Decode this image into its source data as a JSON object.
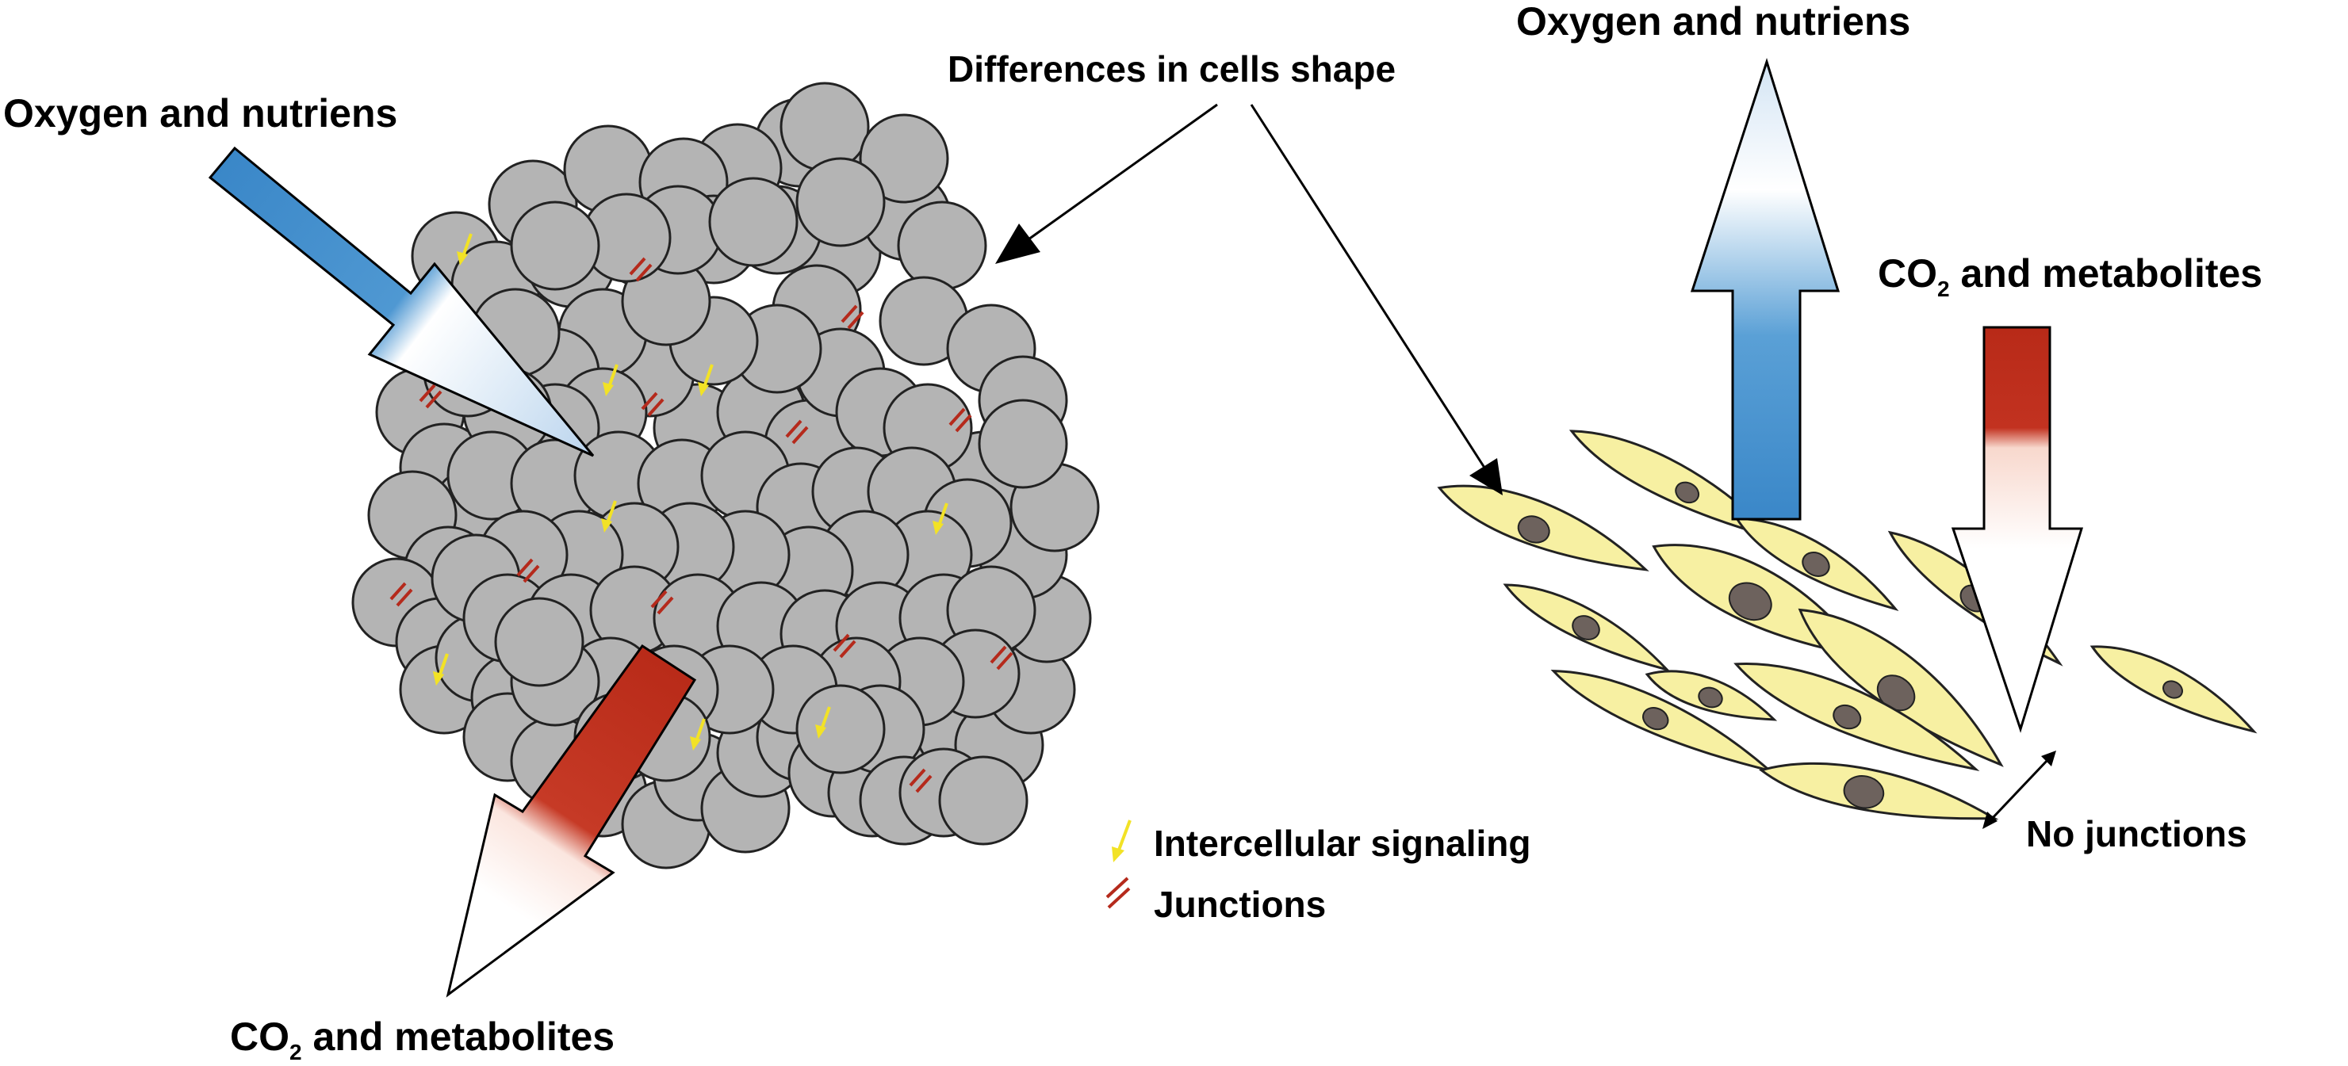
{
  "left_panel": {
    "oxygen_label": "Oxygen and nutriens",
    "co2_label": {
      "prefix": "CO",
      "subscript": "2",
      "suffix": " and metabolites"
    }
  },
  "center": {
    "shape_label": "Differences in cells shape"
  },
  "right_panel": {
    "oxygen_label": "Oxygen and nutriens",
    "co2_label": {
      "prefix": "CO",
      "subscript": "2",
      "suffix": " and metabolites"
    },
    "no_junctions_label": "No junctions"
  },
  "legend": {
    "items": [
      {
        "label": "Intercellular signaling",
        "icon": "yellow-arrow-icon"
      },
      {
        "label": "Junctions",
        "icon": "red-double-line-icon"
      }
    ]
  },
  "colors": {
    "cell_fill": "#b4b4b4",
    "flat_cell_fill": "#f7f0a2",
    "nucleus_fill": "#6d625d",
    "nutrient_arrow": "#3a87c8",
    "waste_arrow": "#b82a18",
    "signal_arrow": "#f2e226",
    "junction": "#b52a1c"
  }
}
